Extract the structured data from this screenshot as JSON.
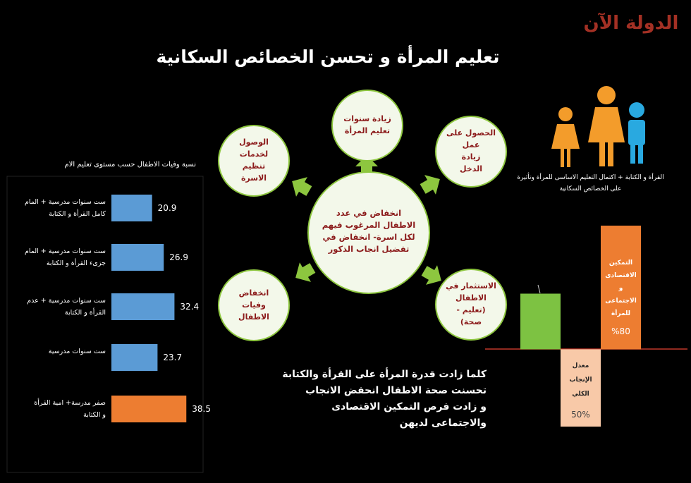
{
  "logo": "الدولة الآن",
  "title": "تعليم المرأة و تحسن الخصائص السكانية",
  "chart_data": [
    {
      "type": "hbar",
      "title": "نسبة وفيات الاطفال حسب مستوى تعليم الام",
      "categories": [
        "ست سنوات مدرسية  + المام\nكامل القرأة و الكتابة",
        "ست سنوات مدرسية + المام\nجزىء القرأة و الكتابة",
        "ست سنوات مدرسية + عدم\nالقرأة و الكتابة",
        "ست سنوات مدرسية",
        "صفر مدرسة+ امية القرأة\nو الكتابة"
      ],
      "values": [
        20.9,
        26.9,
        32.4,
        23.7,
        38.5
      ],
      "colors": [
        "#5b9bd5",
        "#5b9bd5",
        "#5b9bd5",
        "#5b9bd5",
        "#ed7d31"
      ]
    },
    {
      "type": "bar",
      "categories": [
        null,
        "معدل\nالإنجاب\nالكلي",
        "التمكين\nالاقتصادى\nو\nالاجتماعى\nللمرأة"
      ],
      "values": [
        36,
        -50,
        80
      ],
      "value_labels": [
        null,
        "50%",
        "%80"
      ],
      "colors": [
        "#7dc242",
        "#f8c9a8",
        "#ed7d31"
      ],
      "ylim": [
        -50,
        80
      ]
    }
  ],
  "diagram": {
    "center": "انخفاض في عدد\nالاطفال المرغوب فيهم\nلكل اسرة- انخفاض في\nتفضيل انجاب الذكور",
    "nodes": [
      "زيادة سنوات\nتعليم المرأة",
      "الحصول على\nعمل\nزيادة\nالدخل",
      "الاستثمار في\nالاطفال\n(تعليم -\nصحة)",
      "انخفاض\nوفيات\nالاطفال",
      "الوصول\nلخدمات\nتنظيم\nالاسرة"
    ]
  },
  "caption": "كلما زادت قدرة المرأة على القرأة والكتابة\nتحسنت صحة الاطفال انحفض الانجاب\nو زادت فرص التمكين الاقتصادى\nوالاجتماعى لديهن",
  "family_caption": "القرأة و الكتابة + اكتمال التعليم الاساسى للمرأة وتأثيرة\nعلى الخصائص السكانية"
}
